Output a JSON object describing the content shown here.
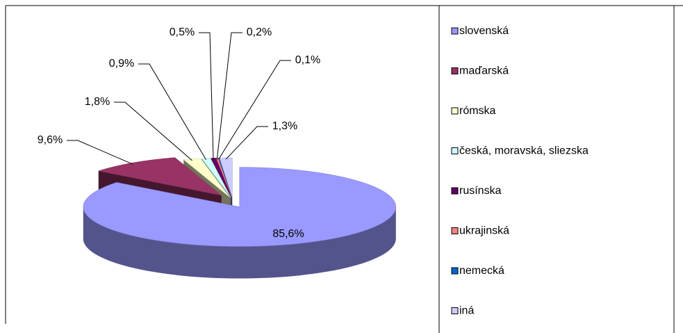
{
  "chart_data": {
    "type": "pie3d",
    "categories": [
      "slovenská",
      "maďarská",
      "rómska",
      "česká, moravská, sliezska",
      "rusínska",
      "ukrajinská",
      "nemecká",
      "iná"
    ],
    "values": [
      85.6,
      9.6,
      1.8,
      0.9,
      0.5,
      0.2,
      0.1,
      1.3
    ],
    "value_labels": [
      "85,6%",
      "9,6%",
      "1,8%",
      "0,9%",
      "0,5%",
      "0,2%",
      "0,1%",
      "1,3%"
    ],
    "colors": [
      "#9999ff",
      "#993366",
      "#ffffcc",
      "#ccffff",
      "#660066",
      "#ff8080",
      "#0066cc",
      "#ccccff"
    ],
    "legend": "right"
  }
}
